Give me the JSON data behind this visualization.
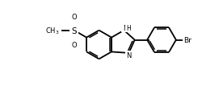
{
  "bg_color": "#ffffff",
  "line_color": "#000000",
  "line_width": 1.3,
  "dpi": 100,
  "figsize": [
    2.76,
    1.13
  ],
  "bl": 0.65,
  "xlim": [
    -1.5,
    8.5
  ],
  "ylim": [
    0.0,
    3.8
  ],
  "fs": 6.0,
  "fs_br": 6.5
}
